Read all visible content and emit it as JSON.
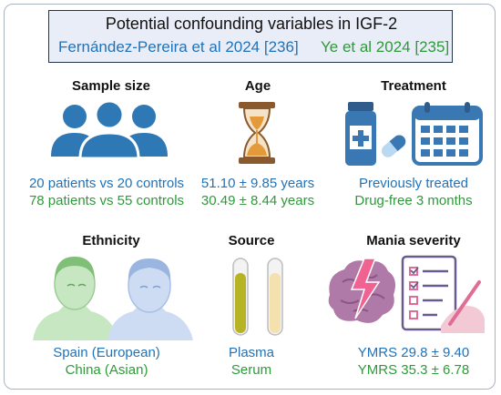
{
  "title": "Potential confounding variables in IGF-2",
  "sources": {
    "study_a": "Fernández-Pereira et al 2024 [236]",
    "study_b": "Ye et al 2024 [235]"
  },
  "colors": {
    "study_a": "#2272b8",
    "study_b": "#2e9a3a"
  },
  "panels": {
    "sample_size": {
      "heading": "Sample size",
      "a": "20 patients vs 20 controls",
      "b": "78 patients vs 55 controls",
      "icon": "people-group-icon"
    },
    "age": {
      "heading": "Age",
      "a": "51.10 ± 9.85 years",
      "b": "30.49 ± 8.44 years",
      "icon": "hourglass-icon"
    },
    "treatment": {
      "heading": "Treatment",
      "a": "Previously treated",
      "b": "Drug-free 3 months",
      "icon": "medication-calendar-icon"
    },
    "ethnicity": {
      "heading": "Ethnicity",
      "a": "Spain (European)",
      "b": "China (Asian)",
      "icon": "faces-icon"
    },
    "source": {
      "heading": "Source",
      "a": "Plasma",
      "b": "Serum",
      "icon": "test-tubes-icon"
    },
    "mania": {
      "heading": "Mania severity",
      "a": "YMRS 29.8 ± 9.40",
      "b": "YMRS 35.3 ± 6.78",
      "icon": "brain-checklist-icon"
    }
  }
}
